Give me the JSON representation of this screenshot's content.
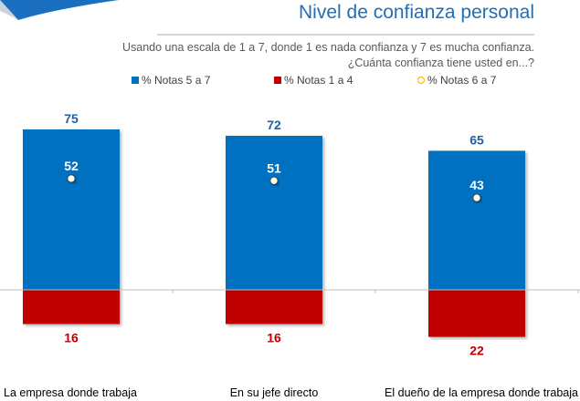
{
  "header": {
    "title": "Nivel de confianza personal",
    "subtitle_line1": "Usando una escala de 1 a 7, donde 1 es nada confianza y 7 es mucha confianza.",
    "subtitle_line2": "¿Cuánta confianza tiene usted en...?"
  },
  "chart_data": {
    "type": "bar",
    "title": "Nivel de confianza personal",
    "categories": [
      "La empresa donde trabaja",
      "En su jefe directo",
      "El dueño de la empresa donde trabaja"
    ],
    "series": [
      {
        "name": "% Notas 5 a 7",
        "kind": "bar-up",
        "color": "#0070C0",
        "label_color": "#1F5FA8",
        "values": [
          75,
          72,
          65
        ]
      },
      {
        "name": "% Notas 1 a 4",
        "kind": "bar-down",
        "color": "#C00000",
        "label_color": "#C00000",
        "values": [
          16,
          16,
          22
        ]
      },
      {
        "name": "% Notas 6 a 7",
        "kind": "marker",
        "color": "#FFC000",
        "label_color": "#FFFFFF",
        "values": [
          52,
          51,
          43
        ]
      }
    ],
    "legend_position": "top",
    "grid": false,
    "ylim": [
      -30,
      85
    ]
  }
}
